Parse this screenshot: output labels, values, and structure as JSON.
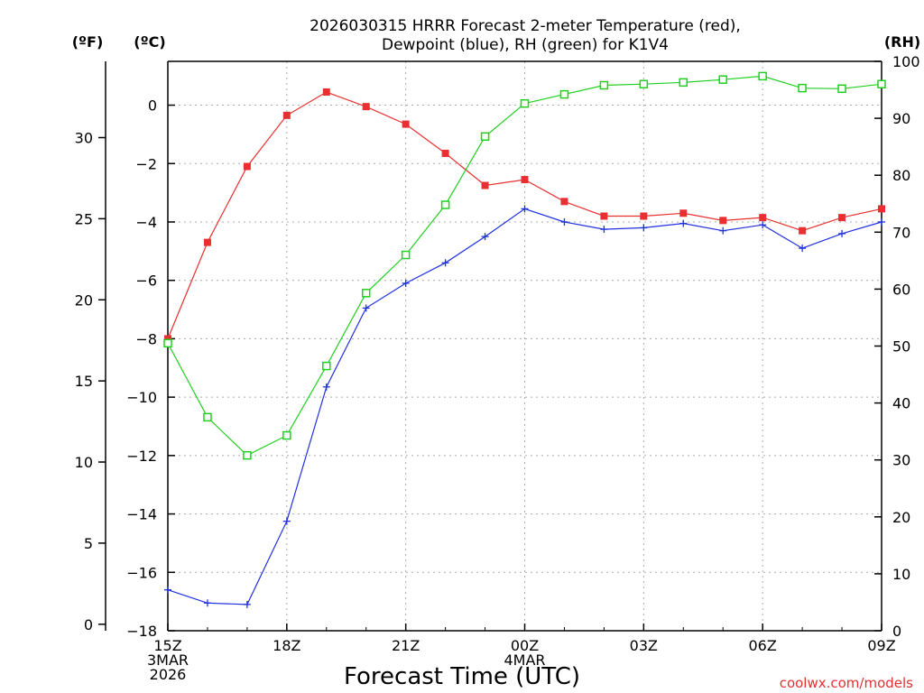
{
  "chart_data": {
    "type": "line",
    "title_lines": [
      "2026030315 HRRR Forecast 2-meter Temperature (red),",
      "Dewpoint (blue), RH (green) for K1V4"
    ],
    "xlabel": "Forecast Time (UTC)",
    "watermark": "coolwx.com/models",
    "unit_labels": {
      "fahrenheit": "(ºF)",
      "celsius": "(ºC)",
      "rh": "(RH)"
    },
    "x_hours": [
      0,
      1,
      2,
      3,
      4,
      5,
      6,
      7,
      8,
      9,
      10,
      11,
      12,
      13,
      14,
      15,
      16,
      17,
      18
    ],
    "x_ticks": [
      {
        "hour": 0,
        "lines": [
          "15Z",
          "3MAR",
          "2026"
        ]
      },
      {
        "hour": 3,
        "lines": [
          "18Z"
        ]
      },
      {
        "hour": 6,
        "lines": [
          "21Z"
        ]
      },
      {
        "hour": 9,
        "lines": [
          "00Z",
          "4MAR"
        ]
      },
      {
        "hour": 12,
        "lines": [
          "03Z"
        ]
      },
      {
        "hour": 15,
        "lines": [
          "06Z"
        ]
      },
      {
        "hour": 18,
        "lines": [
          "09Z"
        ]
      }
    ],
    "celsius_axis": {
      "min": -18,
      "max": 1.5,
      "ticks": [
        0,
        -2,
        -4,
        -6,
        -8,
        -10,
        -12,
        -14,
        -16,
        -18
      ]
    },
    "fahrenheit_axis": {
      "ticks": [
        0,
        5,
        10,
        15,
        20,
        25,
        30
      ]
    },
    "rh_axis": {
      "min": 0,
      "max": 100,
      "ticks": [
        0,
        10,
        20,
        30,
        40,
        50,
        60,
        70,
        80,
        90,
        100
      ]
    },
    "grid": true,
    "series": [
      {
        "name": "Temperature",
        "axis": "celsius",
        "color": "#e83030",
        "marker": "filled-square",
        "values": [
          -8.0,
          -4.7,
          -2.1,
          -0.35,
          0.45,
          -0.05,
          -0.65,
          -1.65,
          -2.75,
          -2.55,
          -3.3,
          -3.8,
          -3.8,
          -3.7,
          -3.95,
          -3.85,
          -4.3,
          -3.85,
          -3.55
        ]
      },
      {
        "name": "Dewpoint",
        "axis": "celsius",
        "color": "#2030e0",
        "marker": "plus",
        "values": [
          -16.6,
          -17.05,
          -17.1,
          -14.25,
          -9.65,
          -6.95,
          -6.1,
          -5.4,
          -4.5,
          -3.55,
          -4.0,
          -4.25,
          -4.2,
          -4.05,
          -4.3,
          -4.1,
          -4.9,
          -4.4,
          -4.0
        ]
      },
      {
        "name": "RH",
        "axis": "rh",
        "color": "#20d020",
        "marker": "open-square",
        "values": [
          50.5,
          37.5,
          30.8,
          34.3,
          46.5,
          59.3,
          66.0,
          74.8,
          86.8,
          92.6,
          94.2,
          95.8,
          96.0,
          96.3,
          96.8,
          97.4,
          95.3,
          95.2,
          96.0
        ]
      }
    ]
  }
}
